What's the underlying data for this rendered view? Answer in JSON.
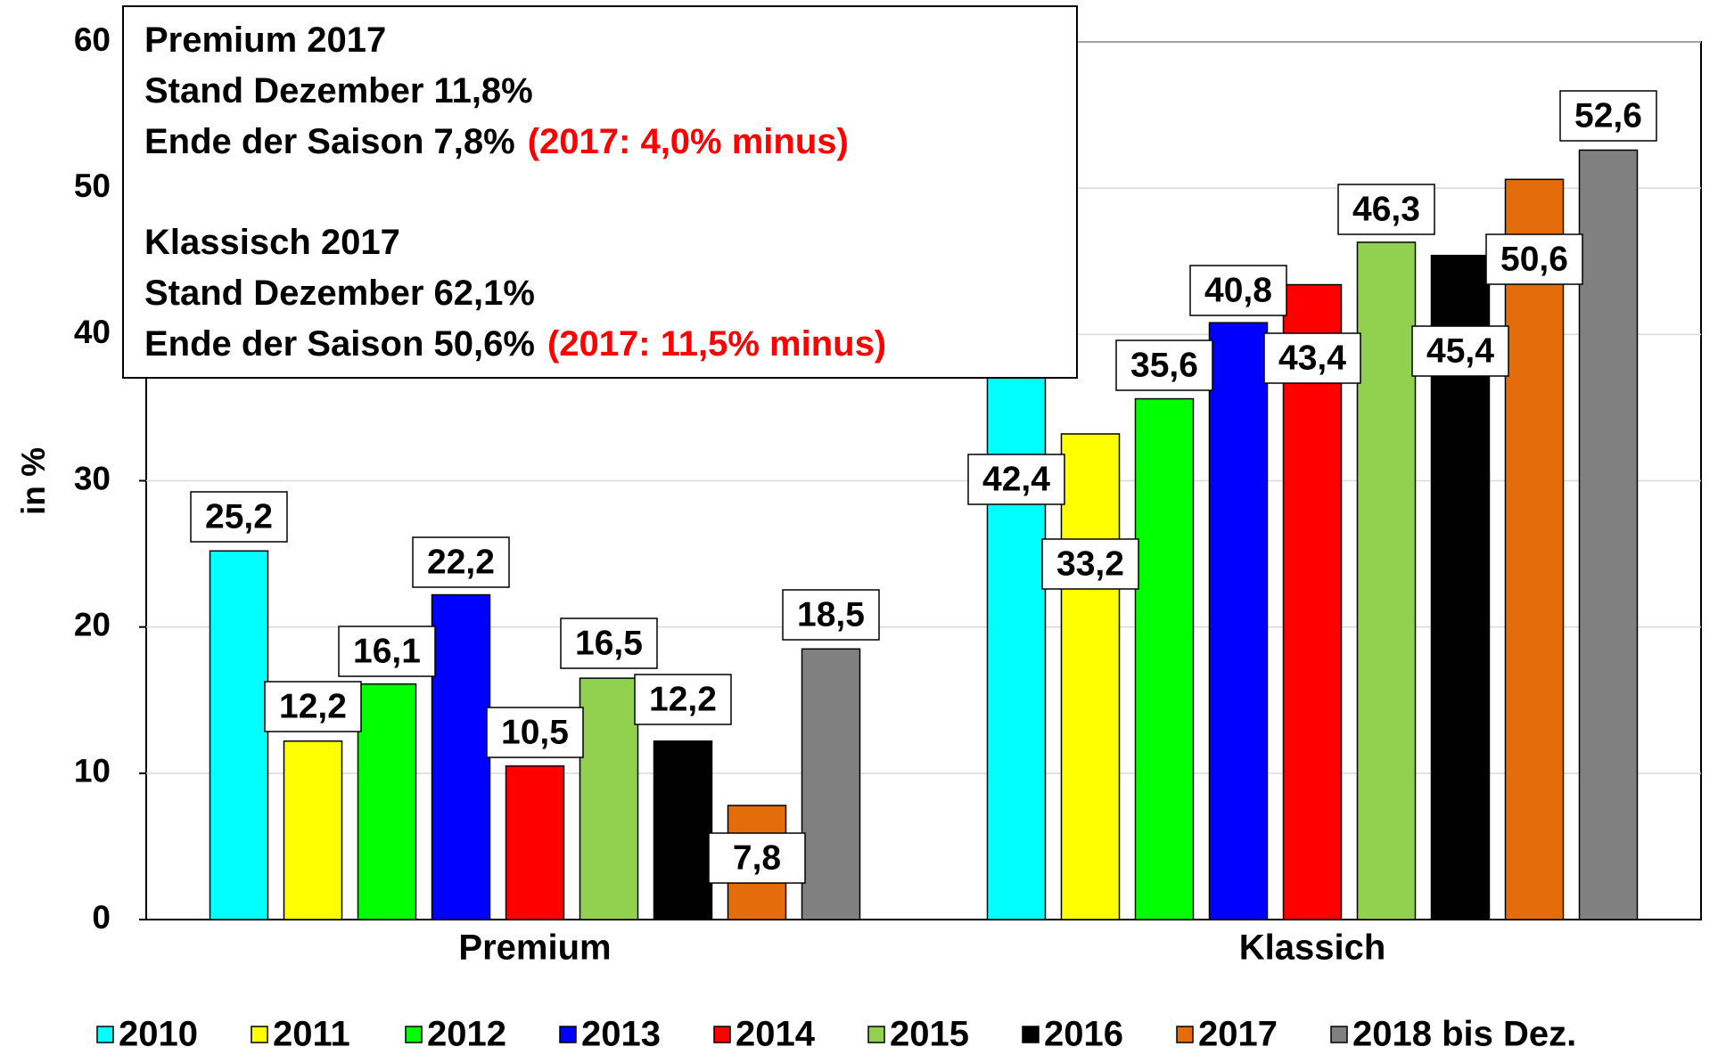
{
  "chart_data": {
    "type": "bar",
    "categories": [
      "Premium",
      "Klassich"
    ],
    "y_label": "in %",
    "ylim": [
      0,
      60
    ],
    "yticks": [
      0,
      10,
      20,
      30,
      40,
      50,
      60
    ],
    "grid": true,
    "legend": "bottom",
    "series": [
      {
        "name": "2010",
        "color": "#00ffff",
        "values": [
          25.2,
          42.4
        ],
        "value_labels": [
          "25,2",
          "42,4"
        ]
      },
      {
        "name": "2011",
        "color": "#ffff00",
        "values": [
          12.2,
          33.2
        ],
        "value_labels": [
          "12,2",
          "33,2"
        ]
      },
      {
        "name": "2012",
        "color": "#00ff00",
        "values": [
          16.1,
          35.6
        ],
        "value_labels": [
          "16,1",
          "35,6"
        ]
      },
      {
        "name": "2013",
        "color": "#0000ff",
        "values": [
          22.2,
          40.8
        ],
        "value_labels": [
          "22,2",
          "40,8"
        ]
      },
      {
        "name": "2014",
        "color": "#ff0000",
        "values": [
          10.5,
          43.4
        ],
        "value_labels": [
          "10,5",
          "43,4"
        ]
      },
      {
        "name": "2015",
        "color": "#92d050",
        "values": [
          16.5,
          46.3
        ],
        "value_labels": [
          "16,5",
          "46,3"
        ]
      },
      {
        "name": "2016",
        "color": "#000000",
        "values": [
          12.2,
          45.4
        ],
        "value_labels": [
          "12,2",
          "45,4"
        ]
      },
      {
        "name": "2017",
        "color": "#e46c0a",
        "values": [
          7.8,
          50.6
        ],
        "value_labels": [
          "7,8",
          "50,6"
        ]
      },
      {
        "name": "2018 bis Dez.",
        "color": "#808080",
        "values": [
          18.5,
          52.6
        ],
        "value_labels": [
          "18,5",
          "52,6"
        ]
      }
    ],
    "annotation": {
      "note_color": "#ff0000",
      "blocks": [
        {
          "lines": [
            "Premium 2017",
            "Stand Dezember 11,8%",
            "Ende der Saison 7,8%"
          ],
          "note": "(2017: 4,0% minus)"
        },
        {
          "lines": [
            "Klassisch 2017",
            "Stand Dezember 62,1%",
            "Ende der Saison 50,6%"
          ],
          "note": "(2017: 11,5% minus)"
        }
      ]
    }
  }
}
